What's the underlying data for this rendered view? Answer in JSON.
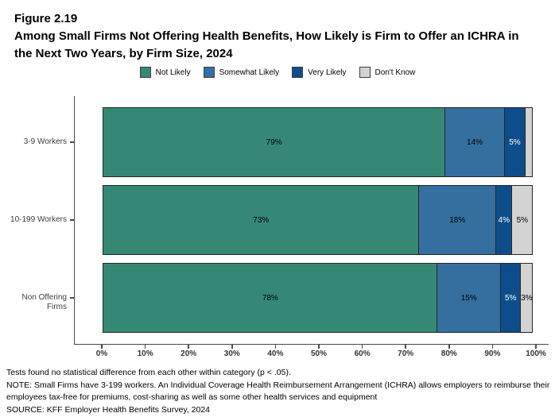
{
  "figure": {
    "label": "Figure 2.19",
    "title_line1": "Among Small Firms Not Offering Health Benefits, How Likely is Firm to Offer an ICHRA in",
    "title_line2": "the Next Two Years, by Firm Size, 2024"
  },
  "chart_data": {
    "type": "bar",
    "orientation": "horizontal",
    "stacked": true,
    "title": "Among Small Firms Not Offering Health Benefits, How Likely is Firm to Offer an ICHRA in the Next Two Years, by Firm Size, 2024",
    "categories": [
      "3-9 Workers",
      "10-199 Workers",
      "Non Offering Firms"
    ],
    "series": [
      {
        "name": "Not Likely",
        "color": "#358874",
        "label_color": "#000000",
        "values": [
          79,
          73,
          78
        ],
        "labels": [
          "79%",
          "73%",
          "78%"
        ]
      },
      {
        "name": "Somewhat Likely",
        "color": "#346F9F",
        "label_color": "#000000",
        "values": [
          14,
          18,
          15
        ],
        "labels": [
          "14%",
          "18%",
          "15%"
        ]
      },
      {
        "name": "Very Likely",
        "color": "#0E4D8C",
        "label_color": "#FFFFFF",
        "values": [
          5,
          4,
          5
        ],
        "labels": [
          "5%",
          "4%",
          "5%"
        ]
      },
      {
        "name": "Don't Know",
        "color": "#D3D3D3",
        "label_color": "#000000",
        "values": [
          2,
          5,
          3
        ],
        "labels": [
          "",
          "5%",
          "3%"
        ]
      }
    ],
    "x_ticks": [
      "0%",
      "10%",
      "20%",
      "30%",
      "40%",
      "50%",
      "60%",
      "70%",
      "80%",
      "90%",
      "100%"
    ],
    "x_tick_values": [
      0,
      10,
      20,
      30,
      40,
      50,
      60,
      70,
      80,
      90,
      100
    ],
    "xlim": [
      0,
      100
    ],
    "xlabel": "",
    "ylabel": "",
    "grid": false,
    "legend_position": "top"
  },
  "notes": {
    "line1": "Tests found no statistical difference from each other within category (p < .05).",
    "line2": "NOTE: Small Firms have 3-199 workers. An Individual Coverage Health Reimbursement Arrangement (ICHRA) allows employers to reimburse their employees tax-free for premiums, cost-sharing as well as some other health services and equipment",
    "line3": "SOURCE: KFF Employer Health Benefits Survey, 2024"
  }
}
